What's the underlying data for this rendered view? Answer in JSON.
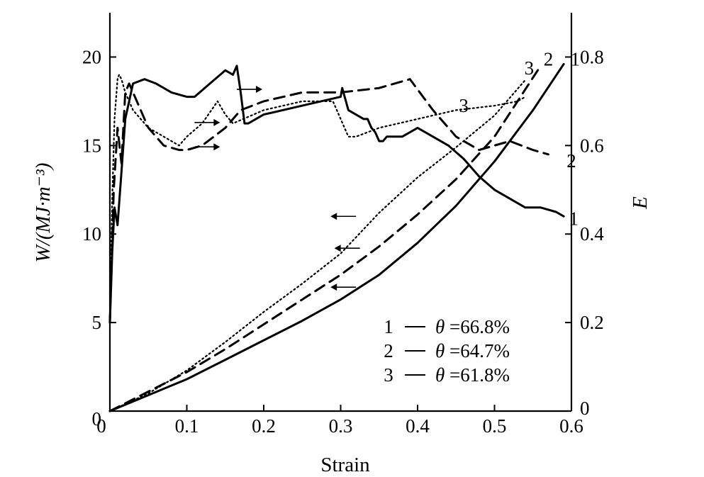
{
  "chart_data": {
    "type": "line",
    "xlabel": "Strain",
    "ylabel": "W/(MJ·m⁻³)",
    "y2label": "E",
    "xlim": [
      0,
      0.6
    ],
    "ylim": [
      0,
      22.5
    ],
    "y2lim": [
      0,
      0.9
    ],
    "xticks": [
      0,
      0.1,
      0.2,
      0.3,
      0.4,
      0.5,
      0.6
    ],
    "xtick_labels": [
      "0",
      "0.1",
      "0.2",
      "0.3",
      "0.4",
      "0.5",
      "0.6"
    ],
    "yticks": [
      0,
      5,
      10,
      15,
      20
    ],
    "ytick_labels": [
      "0",
      "5",
      "10",
      "15",
      "20"
    ],
    "y2ticks": [
      0,
      0.2,
      0.4,
      0.6,
      0.8
    ],
    "y2tick_labels": [
      "0",
      "0.2",
      "0.4",
      "0.6",
      "0.8"
    ],
    "grid": false,
    "legend": {
      "placement": "bottom-right",
      "entries": [
        {
          "label": "1",
          "text": "θ =66.8%"
        },
        {
          "label": "2",
          "text": "θ =64.7%"
        },
        {
          "label": "3",
          "text": "θ =61.8%"
        }
      ]
    },
    "series": [
      {
        "label": "1",
        "quantity": "W",
        "axis": "left",
        "style": "solid",
        "x": [
          0,
          0.05,
          0.1,
          0.15,
          0.2,
          0.25,
          0.3,
          0.35,
          0.4,
          0.45,
          0.5,
          0.55,
          0.59
        ],
        "y": [
          0,
          0.9,
          1.8,
          2.9,
          4.0,
          5.1,
          6.3,
          7.7,
          9.5,
          11.6,
          14.1,
          17.0,
          19.6
        ]
      },
      {
        "label": "2",
        "quantity": "W",
        "axis": "left",
        "style": "dashed",
        "x": [
          0,
          0.05,
          0.1,
          0.15,
          0.2,
          0.25,
          0.3,
          0.35,
          0.4,
          0.45,
          0.5,
          0.56
        ],
        "y": [
          0,
          1.1,
          2.2,
          3.5,
          4.9,
          6.3,
          7.7,
          9.3,
          11.1,
          13.1,
          15.5,
          19.5
        ]
      },
      {
        "label": "3",
        "quantity": "W",
        "axis": "left",
        "style": "dotted",
        "x": [
          0,
          0.05,
          0.1,
          0.15,
          0.2,
          0.25,
          0.3,
          0.35,
          0.4,
          0.45,
          0.5,
          0.54
        ],
        "y": [
          0,
          1.0,
          2.3,
          3.9,
          5.6,
          7.2,
          8.9,
          11.2,
          13.2,
          14.9,
          16.7,
          18.7
        ]
      },
      {
        "label": "1",
        "quantity": "E",
        "axis": "right",
        "style": "solid",
        "x": [
          0,
          0.003,
          0.006,
          0.01,
          0.015,
          0.02,
          0.03,
          0.045,
          0.06,
          0.08,
          0.1,
          0.11,
          0.13,
          0.15,
          0.16,
          0.165,
          0.17,
          0.175,
          0.18,
          0.2,
          0.25,
          0.3,
          0.302,
          0.31,
          0.33,
          0.335,
          0.34,
          0.345,
          0.35,
          0.355,
          0.36,
          0.38,
          0.4,
          0.42,
          0.44,
          0.46,
          0.48,
          0.5,
          0.52,
          0.54,
          0.56,
          0.58,
          0.59
        ],
        "y": [
          0.2,
          0.36,
          0.46,
          0.42,
          0.54,
          0.66,
          0.74,
          0.75,
          0.74,
          0.72,
          0.71,
          0.71,
          0.74,
          0.77,
          0.76,
          0.78,
          0.72,
          0.65,
          0.65,
          0.67,
          0.69,
          0.71,
          0.73,
          0.68,
          0.66,
          0.66,
          0.64,
          0.63,
          0.61,
          0.61,
          0.62,
          0.62,
          0.64,
          0.62,
          0.6,
          0.57,
          0.53,
          0.5,
          0.48,
          0.46,
          0.46,
          0.45,
          0.44
        ]
      },
      {
        "label": "2",
        "quantity": "E",
        "axis": "right",
        "style": "dashed",
        "x": [
          0,
          0.005,
          0.01,
          0.015,
          0.02,
          0.025,
          0.03,
          0.05,
          0.07,
          0.09,
          0.1,
          0.12,
          0.15,
          0.17,
          0.2,
          0.25,
          0.3,
          0.35,
          0.39,
          0.42,
          0.45,
          0.48,
          0.5,
          0.52,
          0.55,
          0.57
        ],
        "y": [
          0.2,
          0.5,
          0.64,
          0.56,
          0.72,
          0.74,
          0.72,
          0.64,
          0.6,
          0.59,
          0.59,
          0.6,
          0.64,
          0.68,
          0.7,
          0.72,
          0.72,
          0.73,
          0.75,
          0.68,
          0.62,
          0.59,
          0.6,
          0.61,
          0.59,
          0.58
        ]
      },
      {
        "label": "3",
        "quantity": "E",
        "axis": "right",
        "style": "dotted",
        "x": [
          0,
          0.003,
          0.006,
          0.01,
          0.012,
          0.015,
          0.02,
          0.03,
          0.05,
          0.07,
          0.09,
          0.1,
          0.12,
          0.14,
          0.15,
          0.16,
          0.2,
          0.25,
          0.29,
          0.3,
          0.31,
          0.32,
          0.35,
          0.4,
          0.45,
          0.5,
          0.53,
          0.54
        ],
        "y": [
          0.2,
          0.48,
          0.66,
          0.75,
          0.76,
          0.75,
          0.72,
          0.68,
          0.64,
          0.62,
          0.6,
          0.62,
          0.65,
          0.7,
          0.67,
          0.65,
          0.68,
          0.7,
          0.7,
          0.66,
          0.62,
          0.62,
          0.64,
          0.66,
          0.68,
          0.69,
          0.7,
          0.71
        ]
      }
    ],
    "annotations": [
      {
        "type": "arrow",
        "direction": "right",
        "x": 0.165,
        "E": 0.727
      },
      {
        "type": "arrow",
        "direction": "right",
        "x": 0.11,
        "E": 0.652
      },
      {
        "type": "arrow",
        "direction": "right",
        "x": 0.11,
        "E": 0.597
      },
      {
        "type": "arrow",
        "direction": "left",
        "x": 0.32,
        "W": 11.0
      },
      {
        "type": "arrow",
        "direction": "left",
        "x": 0.325,
        "W": 9.2
      },
      {
        "type": "arrow",
        "direction": "left",
        "x": 0.32,
        "W": 7.0
      },
      {
        "type": "label",
        "text": "3",
        "x": 0.545,
        "E": 0.775
      },
      {
        "type": "label",
        "text": "2",
        "x": 0.57,
        "E": 0.795
      },
      {
        "type": "label",
        "text": "1",
        "x": 0.605,
        "E": 0.795
      },
      {
        "type": "label",
        "text": "3",
        "x": 0.46,
        "E": 0.69
      },
      {
        "type": "label",
        "text": "2",
        "x": 0.6,
        "E": 0.565
      },
      {
        "type": "label",
        "text": "1",
        "x": 0.603,
        "E": 0.435
      }
    ]
  }
}
